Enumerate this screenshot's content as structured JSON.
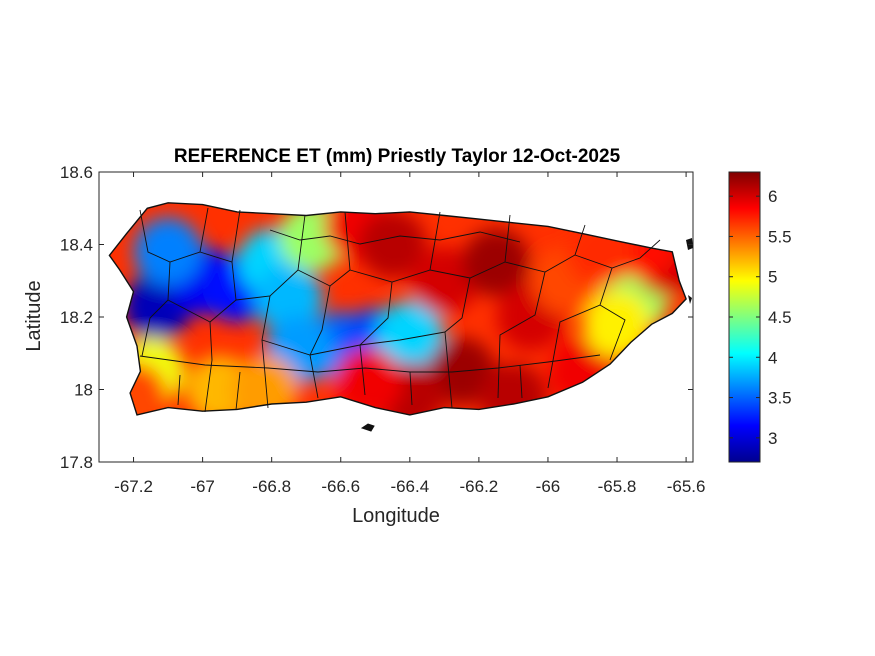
{
  "chart_data": {
    "type": "heatmap",
    "title": "REFERENCE ET (mm) Priestly Taylor 12-Oct-2025",
    "xlabel": "Longitude",
    "ylabel": "Latitude",
    "xlim": [
      -67.3,
      -65.58
    ],
    "ylim": [
      17.8,
      18.6
    ],
    "xticks": [
      -67.2,
      -67,
      -66.8,
      -66.6,
      -66.4,
      -66.2,
      -66,
      -65.8,
      -65.6
    ],
    "xtick_labels": [
      "-67.2",
      "-67",
      "-66.8",
      "-66.6",
      "-66.4",
      "-66.2",
      "-66",
      "-65.8",
      "-65.6"
    ],
    "yticks": [
      17.8,
      18,
      18.2,
      18.4,
      18.6
    ],
    "ytick_labels": [
      "17.8",
      "18",
      "18.2",
      "18.4",
      "18.6"
    ],
    "colorbar": {
      "colormap": "jet",
      "range": [
        2.7,
        6.3
      ],
      "ticks": [
        3,
        3.5,
        4,
        4.5,
        5,
        5.5,
        6
      ],
      "tick_labels": [
        "3",
        "3.5",
        "4",
        "4.5",
        "5",
        "5.5",
        "6"
      ]
    },
    "region": "Puerto Rico",
    "value_centers": [
      {
        "lon": -67.13,
        "lat": 18.23,
        "value": 2.9
      },
      {
        "lon": -67.0,
        "lat": 18.3,
        "value": 3.1
      },
      {
        "lon": -66.9,
        "lat": 18.28,
        "value": 3.2
      },
      {
        "lon": -67.1,
        "lat": 18.38,
        "value": 3.6
      },
      {
        "lon": -66.8,
        "lat": 18.35,
        "value": 3.9
      },
      {
        "lon": -66.75,
        "lat": 18.25,
        "value": 3.8
      },
      {
        "lon": -66.6,
        "lat": 18.12,
        "value": 3.5
      },
      {
        "lon": -66.5,
        "lat": 18.13,
        "value": 3.4
      },
      {
        "lon": -66.4,
        "lat": 18.15,
        "value": 3.9
      },
      {
        "lon": -66.72,
        "lat": 18.11,
        "value": 3.7
      },
      {
        "lon": -67.15,
        "lat": 18.05,
        "value": 4.9
      },
      {
        "lon": -67.2,
        "lat": 17.98,
        "value": 5.6
      },
      {
        "lon": -66.95,
        "lat": 18.0,
        "value": 5.2
      },
      {
        "lon": -66.82,
        "lat": 18.0,
        "value": 5.3
      },
      {
        "lon": -66.68,
        "lat": 18.42,
        "value": 4.6
      },
      {
        "lon": -66.55,
        "lat": 18.45,
        "value": 5.9
      },
      {
        "lon": -66.45,
        "lat": 18.4,
        "value": 6.1
      },
      {
        "lon": -66.3,
        "lat": 18.3,
        "value": 6.0
      },
      {
        "lon": -66.15,
        "lat": 18.35,
        "value": 6.2
      },
      {
        "lon": -66.05,
        "lat": 18.2,
        "value": 6.0
      },
      {
        "lon": -66.25,
        "lat": 18.05,
        "value": 6.2
      },
      {
        "lon": -66.4,
        "lat": 17.98,
        "value": 6.1
      },
      {
        "lon": -66.52,
        "lat": 18.02,
        "value": 5.9
      },
      {
        "lon": -66.1,
        "lat": 17.98,
        "value": 6.1
      },
      {
        "lon": -65.9,
        "lat": 18.05,
        "value": 5.9
      },
      {
        "lon": -65.95,
        "lat": 18.3,
        "value": 5.6
      },
      {
        "lon": -65.75,
        "lat": 18.25,
        "value": 4.6
      },
      {
        "lon": -65.8,
        "lat": 18.18,
        "value": 5.0
      },
      {
        "lon": -65.65,
        "lat": 18.35,
        "value": 6.0
      },
      {
        "lon": -65.72,
        "lat": 18.4,
        "value": 5.8
      },
      {
        "lon": -65.85,
        "lat": 18.38,
        "value": 5.7
      }
    ]
  }
}
